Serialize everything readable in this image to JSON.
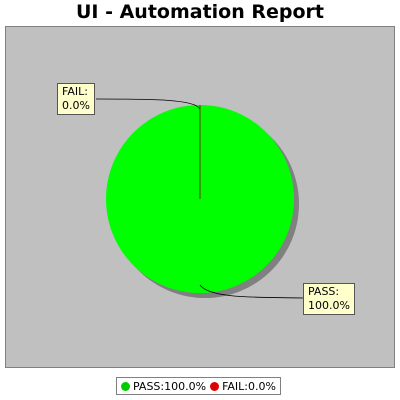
{
  "chart_data": {
    "type": "pie",
    "title": "UI - Automation Report",
    "slices": [
      {
        "label": "PASS",
        "value": 100.0,
        "color": "#00ff00",
        "callout": [
          "PASS:",
          "100.0%"
        ],
        "legend": "PASS:100.0%"
      },
      {
        "label": "FAIL",
        "value": 0.0,
        "color": "#ff0000",
        "callout": [
          "FAIL:",
          "0.0%"
        ],
        "legend": "FAIL:0.0%"
      }
    ],
    "legend_position": "bottom",
    "background": "#c0c0c0"
  }
}
